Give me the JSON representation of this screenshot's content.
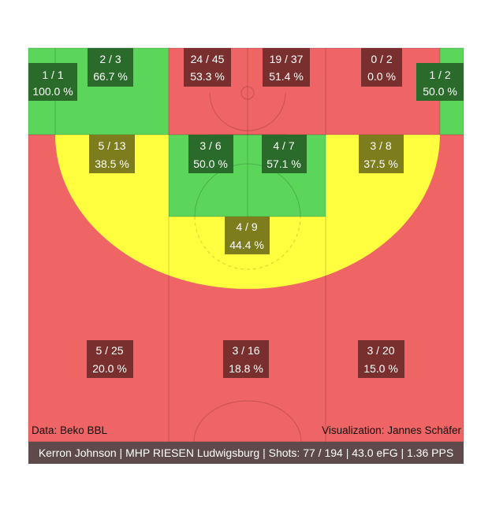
{
  "chart_data": {
    "type": "heatmap",
    "title": "",
    "credits": {
      "data_source": "Data: Beko BBL",
      "visualization": "Visualization: Jannes Schäfer"
    },
    "footer": "Kerron Johnson | MHP RIESEN Ludwigsburg | Shots: 77 / 194 | 43.0 eFG | 1.36 PPS",
    "colors": {
      "green": "#5bd65b",
      "yellow": "#ffff3f",
      "red": "#ef6464",
      "label_green": "#2a6a2a",
      "label_olive": "#7d7d1e",
      "label_red": "#7a2f2f",
      "footer_bg": "#5e4a4a"
    },
    "zones": [
      {
        "id": "corner3-left",
        "made": 1,
        "attempts": 1,
        "fraction": "1 / 1",
        "pct": "100.0 %",
        "color": "green"
      },
      {
        "id": "corner3-right",
        "made": 1,
        "attempts": 2,
        "fraction": "1 / 2",
        "pct": "50.0 %",
        "color": "green"
      },
      {
        "id": "baseline-mid-left",
        "made": 2,
        "attempts": 3,
        "fraction": "2 / 3",
        "pct": "66.7 %",
        "color": "green"
      },
      {
        "id": "baseline-mid-right",
        "made": 0,
        "attempts": 2,
        "fraction": "0 / 2",
        "pct": "0.0 %",
        "color": "red"
      },
      {
        "id": "restricted-left",
        "made": 24,
        "attempts": 45,
        "fraction": "24 / 45",
        "pct": "53.3 %",
        "color": "red"
      },
      {
        "id": "restricted-right",
        "made": 19,
        "attempts": 37,
        "fraction": "19 / 37",
        "pct": "51.4 %",
        "color": "red"
      },
      {
        "id": "wing-mid-left",
        "made": 5,
        "attempts": 13,
        "fraction": "5 / 13",
        "pct": "38.5 %",
        "color": "yellow"
      },
      {
        "id": "wing-mid-right",
        "made": 3,
        "attempts": 8,
        "fraction": "3 / 8",
        "pct": "37.5 %",
        "color": "yellow"
      },
      {
        "id": "paint-left",
        "made": 3,
        "attempts": 6,
        "fraction": "3 / 6",
        "pct": "50.0 %",
        "color": "green"
      },
      {
        "id": "paint-right",
        "made": 4,
        "attempts": 7,
        "fraction": "4 / 7",
        "pct": "57.1 %",
        "color": "green"
      },
      {
        "id": "top-mid",
        "made": 4,
        "attempts": 9,
        "fraction": "4 / 9",
        "pct": "44.4 %",
        "color": "yellow"
      },
      {
        "id": "three-left",
        "made": 5,
        "attempts": 25,
        "fraction": "5 / 25",
        "pct": "20.0 %",
        "color": "red"
      },
      {
        "id": "three-center",
        "made": 3,
        "attempts": 16,
        "fraction": "3 / 16",
        "pct": "18.8 %",
        "color": "red"
      },
      {
        "id": "three-right",
        "made": 3,
        "attempts": 20,
        "fraction": "3 / 20",
        "pct": "15.0 %",
        "color": "red"
      }
    ]
  }
}
